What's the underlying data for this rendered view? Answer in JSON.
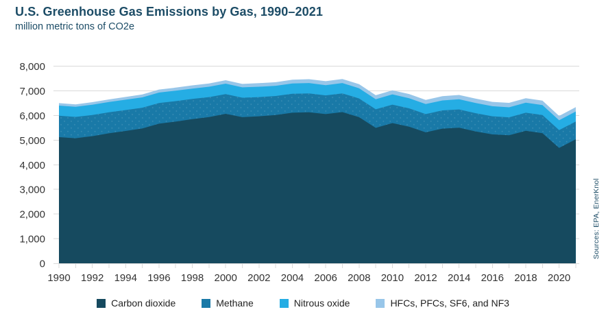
{
  "header": {
    "title": "U.S. Greenhouse Gas Emissions by Gas, 1990–2021",
    "subtitle": "million metric tons of CO2e"
  },
  "source_note": "Sources: EPA, EnerKnol",
  "colors": {
    "title_text": "#1c4c66",
    "axis_text": "#333333",
    "gridline": "#d9d9d9",
    "legend_text": "#222222",
    "carbon_dioxide": "#164a5f",
    "methane": "#1979a7",
    "nitrous_oxide": "#25ade4",
    "hfcs": "#98c6e9"
  },
  "chart_data": {
    "type": "area",
    "stacked": true,
    "title": "U.S. Greenhouse Gas Emissions by Gas, 1990–2021",
    "ylabel": "million metric tons of CO2e",
    "xlabel": "",
    "ylim": [
      0,
      8000
    ],
    "ytick_interval": 1000,
    "ytick_labels": [
      "0",
      "1,000",
      "2,000",
      "3,000",
      "4,000",
      "5,000",
      "6,000",
      "7,000",
      "8,000"
    ],
    "x": [
      1990,
      1991,
      1992,
      1993,
      1994,
      1995,
      1996,
      1997,
      1998,
      1999,
      2000,
      2001,
      2002,
      2003,
      2004,
      2005,
      2006,
      2007,
      2008,
      2009,
      2010,
      2011,
      2012,
      2013,
      2014,
      2015,
      2016,
      2017,
      2018,
      2019,
      2020,
      2021
    ],
    "xtick_labels": [
      "1990",
      "1992",
      "1994",
      "1996",
      "1998",
      "2000",
      "2002",
      "2004",
      "2006",
      "2008",
      "2010",
      "2012",
      "2014",
      "2016",
      "2018",
      "2020"
    ],
    "grid": "horizontal",
    "legend_position": "bottom",
    "series": [
      {
        "name": "Carbon dioxide",
        "color": "#164a5f",
        "values": [
          5120,
          5075,
          5160,
          5275,
          5370,
          5470,
          5665,
          5750,
          5850,
          5935,
          6065,
          5930,
          5965,
          6015,
          6110,
          6130,
          6055,
          6135,
          5930,
          5495,
          5690,
          5545,
          5315,
          5465,
          5500,
          5350,
          5230,
          5195,
          5375,
          5280,
          4680,
          5035
        ]
      },
      {
        "name": "Methane",
        "color": "#1979a7",
        "values": [
          870,
          865,
          860,
          855,
          850,
          845,
          840,
          830,
          820,
          810,
          800,
          790,
          780,
          775,
          770,
          765,
          760,
          760,
          760,
          755,
          750,
          745,
          740,
          740,
          745,
          740,
          735,
          730,
          735,
          735,
          725,
          720
        ]
      },
      {
        "name": "Nitrous oxide",
        "color": "#25ade4",
        "values": [
          410,
          410,
          415,
          415,
          420,
          420,
          425,
          425,
          420,
          420,
          425,
          420,
          420,
          415,
          420,
          420,
          415,
          420,
          415,
          410,
          415,
          410,
          405,
          405,
          410,
          415,
          410,
          405,
          410,
          405,
          400,
          405
        ]
      },
      {
        "name": "HFCs, PFCs, SF6, and NF3",
        "color": "#98c6e9",
        "values": [
          100,
          100,
          105,
          105,
          110,
          115,
          120,
          125,
          130,
          135,
          140,
          140,
          145,
          145,
          150,
          155,
          160,
          165,
          165,
          160,
          165,
          170,
          170,
          170,
          175,
          175,
          175,
          180,
          180,
          180,
          175,
          180
        ]
      }
    ]
  }
}
